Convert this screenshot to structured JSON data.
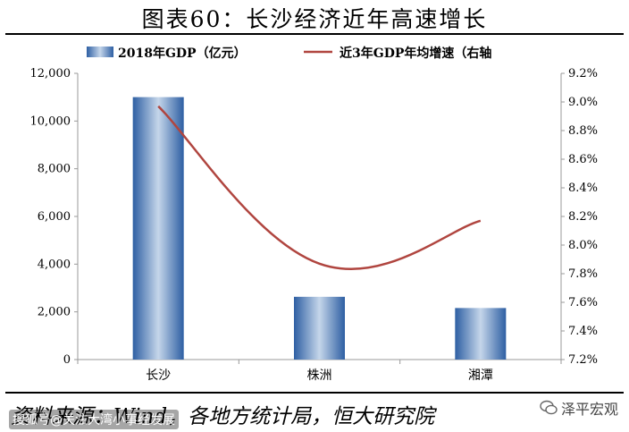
{
  "title": "图表60：长沙经济近年高速增长",
  "source": "资料来源：Wind，各地方统计局，恒大研究院",
  "watermark_left": "搜狐号@关注大湾小事经发展",
  "watermark_right": "泽平宏观",
  "colors": {
    "bar": "#2e5fa3",
    "bar_light": "#c5d6ea",
    "line": "#b0453f"
  },
  "chart_data": {
    "type": "bar+line",
    "categories": [
      "长沙",
      "株洲",
      "湘潭"
    ],
    "series": [
      {
        "name": "2018年GDP（亿元）",
        "type": "bar",
        "axis": "left",
        "values": [
          11003,
          2631,
          2161
        ]
      },
      {
        "name": "近3年GDP年均增速（右轴",
        "type": "line",
        "axis": "right",
        "values": [
          8.97,
          7.87,
          8.17
        ]
      }
    ],
    "y_left": {
      "min": 0,
      "max": 12000,
      "ticks": [
        "0",
        "2,000",
        "4,000",
        "6,000",
        "8,000",
        "10,000",
        "12,000"
      ]
    },
    "y_right": {
      "min": 7.2,
      "max": 9.2,
      "ticks": [
        "7.2%",
        "7.4%",
        "7.6%",
        "7.8%",
        "8.0%",
        "8.2%",
        "8.4%",
        "8.6%",
        "8.8%",
        "9.0%",
        "9.2%"
      ]
    },
    "legend": "top"
  }
}
